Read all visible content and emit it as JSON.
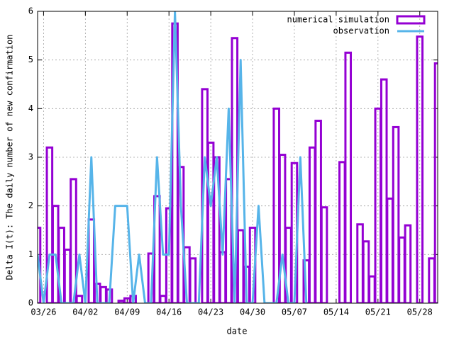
{
  "chart_data": {
    "type": "bar",
    "xlabel": "date",
    "ylabel": "Delta I(t): The daily number of new confirmation",
    "xlim": [
      "03/25",
      "05/31"
    ],
    "xticks": [
      "03/26",
      "04/02",
      "04/09",
      "04/16",
      "04/23",
      "04/30",
      "05/07",
      "05/14",
      "05/21",
      "05/28"
    ],
    "ylim": [
      0,
      6
    ],
    "yticks": [
      0,
      1,
      2,
      3,
      4,
      5,
      6
    ],
    "grid": true,
    "legend": "top-right",
    "series": [
      {
        "name": "numerical simulation",
        "type": "bar",
        "color": "#9400d3",
        "x": [
          "03/25",
          "03/27",
          "03/28",
          "03/29",
          "03/30",
          "03/31",
          "04/01",
          "04/03",
          "04/04",
          "04/05",
          "04/06",
          "04/08",
          "04/09",
          "04/10",
          "04/13",
          "04/14",
          "04/15",
          "04/16",
          "04/17",
          "04/18",
          "04/19",
          "04/20",
          "04/22",
          "04/23",
          "04/24",
          "04/25",
          "04/26",
          "04/27",
          "04/28",
          "04/29",
          "04/30",
          "05/04",
          "05/05",
          "05/06",
          "05/07",
          "05/09",
          "05/10",
          "05/11",
          "05/12",
          "05/15",
          "05/16",
          "05/18",
          "05/19",
          "05/20",
          "05/21",
          "05/22",
          "05/23",
          "05/24",
          "05/25",
          "05/26",
          "05/28",
          "05/30",
          "05/31"
        ],
        "values": [
          1.55,
          3.2,
          2.0,
          1.55,
          1.1,
          2.55,
          0.15,
          1.72,
          0.4,
          0.33,
          0.28,
          0.05,
          0.1,
          0.15,
          1.02,
          2.2,
          0.15,
          1.95,
          5.75,
          2.8,
          1.15,
          0.92,
          4.4,
          3.3,
          3.0,
          1.05,
          2.55,
          5.45,
          1.5,
          0.75,
          1.55,
          4.0,
          3.05,
          1.55,
          2.88,
          0.88,
          3.2,
          3.75,
          1.97,
          2.9,
          5.15,
          1.62,
          1.27,
          0.55,
          4.0,
          4.6,
          2.15,
          3.62,
          1.35,
          1.6,
          5.48,
          0.92,
          4.93
        ]
      },
      {
        "name": "observation",
        "type": "line",
        "color": "#56b4e9",
        "x": [
          "03/25",
          "03/26",
          "03/27",
          "03/28",
          "03/29",
          "03/30",
          "03/31",
          "04/01",
          "04/02",
          "04/03",
          "04/04",
          "04/05",
          "04/06",
          "04/07",
          "04/08",
          "04/09",
          "04/10",
          "04/11",
          "04/12",
          "04/13",
          "04/14",
          "04/15",
          "04/16",
          "04/17",
          "04/18",
          "04/19",
          "04/20",
          "04/21",
          "04/22",
          "04/23",
          "04/24",
          "04/25",
          "04/26",
          "04/27",
          "04/28",
          "04/29",
          "04/30",
          "05/01",
          "05/02",
          "05/03",
          "05/04",
          "05/05",
          "05/06",
          "05/07",
          "05/08",
          "05/09"
        ],
        "values": [
          1,
          0,
          1,
          1,
          0,
          0,
          0,
          1,
          0,
          3,
          0,
          0,
          0,
          2,
          2,
          2,
          0,
          1,
          0,
          0,
          3,
          1,
          1,
          6,
          2,
          0,
          0,
          0,
          3,
          2,
          3,
          1,
          4,
          0,
          5,
          0,
          0,
          2,
          0,
          0,
          0,
          1,
          0,
          0,
          3,
          0
        ]
      }
    ]
  }
}
